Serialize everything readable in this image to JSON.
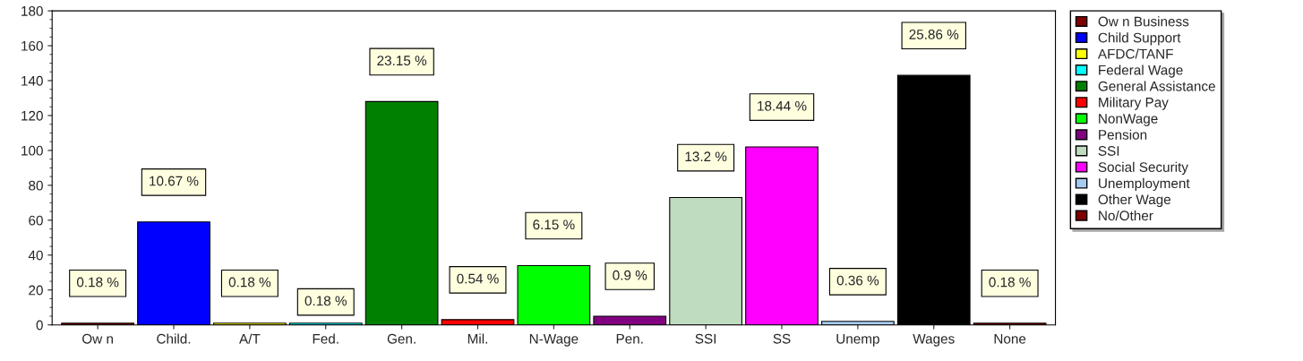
{
  "chart_data": {
    "type": "bar",
    "categories": [
      "Ow n",
      "Child.",
      "A/T",
      "Fed.",
      "Gen.",
      "Mil.",
      "N-Wage",
      "Pen.",
      "SSI",
      "SS",
      "Unemp",
      "Wages",
      "None"
    ],
    "series": [
      {
        "name": "Ow n Business",
        "color": "#800000",
        "values": [
          1,
          null,
          null,
          null,
          null,
          null,
          null,
          null,
          null,
          null,
          null,
          null,
          null
        ]
      },
      {
        "name": "Child Support",
        "color": "#0000ff",
        "values": [
          null,
          59,
          null,
          null,
          null,
          null,
          null,
          null,
          null,
          null,
          null,
          null,
          null
        ]
      },
      {
        "name": "AFDC/TANF",
        "color": "#ffff00",
        "values": [
          null,
          null,
          1,
          null,
          null,
          null,
          null,
          null,
          null,
          null,
          null,
          null,
          null
        ]
      },
      {
        "name": "Federal Wage",
        "color": "#00ffff",
        "values": [
          null,
          null,
          null,
          1,
          null,
          null,
          null,
          null,
          null,
          null,
          null,
          null,
          null
        ]
      },
      {
        "name": "General Assistance",
        "color": "#008000",
        "values": [
          null,
          null,
          null,
          null,
          128,
          null,
          null,
          null,
          null,
          null,
          null,
          null,
          null
        ]
      },
      {
        "name": "Military Pay",
        "color": "#ff0000",
        "values": [
          null,
          null,
          null,
          null,
          null,
          3,
          null,
          null,
          null,
          null,
          null,
          null,
          null
        ]
      },
      {
        "name": "NonWage",
        "color": "#00ff00",
        "values": [
          null,
          null,
          null,
          null,
          null,
          null,
          34,
          null,
          null,
          null,
          null,
          null,
          null
        ]
      },
      {
        "name": "Pension",
        "color": "#800080",
        "values": [
          null,
          null,
          null,
          null,
          null,
          null,
          null,
          5,
          null,
          null,
          null,
          null,
          null
        ]
      },
      {
        "name": "SSI",
        "color": "#c0dcc0",
        "values": [
          null,
          null,
          null,
          null,
          null,
          null,
          null,
          null,
          73,
          null,
          null,
          null,
          null
        ]
      },
      {
        "name": "Social Security",
        "color": "#ff00ff",
        "values": [
          null,
          null,
          null,
          null,
          null,
          null,
          null,
          null,
          null,
          102,
          null,
          null,
          null
        ]
      },
      {
        "name": "Unemployment",
        "color": "#a6caf0",
        "values": [
          null,
          null,
          null,
          null,
          null,
          null,
          null,
          null,
          null,
          null,
          2,
          null,
          null
        ]
      },
      {
        "name": "Other Wage",
        "color": "#000000",
        "values": [
          null,
          null,
          null,
          null,
          null,
          null,
          null,
          null,
          null,
          null,
          null,
          143,
          null
        ]
      },
      {
        "name": "No/Other",
        "color": "#800000",
        "values": [
          null,
          null,
          null,
          null,
          null,
          null,
          null,
          null,
          null,
          null,
          null,
          null,
          1
        ]
      }
    ],
    "annotations": [
      {
        "text": "0.18 %",
        "x": "Ow n",
        "y": 1
      },
      {
        "text": "10.67 %",
        "x": "Child.",
        "y": 59
      },
      {
        "text": "0.18 %",
        "x": "A/T",
        "y": 1
      },
      {
        "text": "0.18 %",
        "x": "Fed.",
        "y": 1
      },
      {
        "text": "23.15 %",
        "x": "Gen.",
        "y": 128
      },
      {
        "text": "0.54 %",
        "x": "Mil.",
        "y": 3
      },
      {
        "text": "6.15 %",
        "x": "N-Wage",
        "y": 34
      },
      {
        "text": "0.9 %",
        "x": "Pen.",
        "y": 5
      },
      {
        "text": "13.2 %",
        "x": "SSI",
        "y": 73
      },
      {
        "text": "18.44 %",
        "x": "SS",
        "y": 102
      },
      {
        "text": "0.36 %",
        "x": "Unemp",
        "y": 2
      },
      {
        "text": "25.86 %",
        "x": "Wages",
        "y": 143
      },
      {
        "text": "0.18 %",
        "x": "None",
        "y": 1
      }
    ],
    "ylim": [
      0,
      180
    ],
    "yticks": [
      0,
      20,
      40,
      60,
      80,
      100,
      120,
      140,
      160,
      180
    ],
    "grid": false,
    "legend": "right"
  }
}
